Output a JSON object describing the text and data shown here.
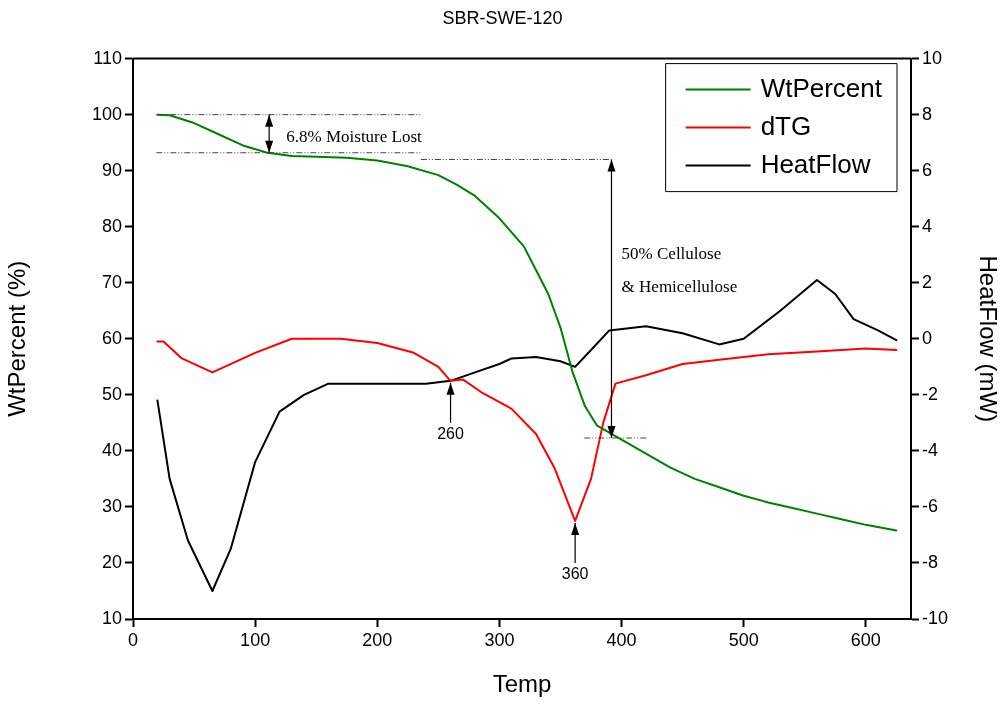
{
  "chart_data": {
    "type": "line",
    "title": "SBR-SWE-120",
    "xlabel": "Temp",
    "ylabel": "WtPercent (%)",
    "y2label": "HeatFlow (mW)",
    "xlim": [
      0,
      637
    ],
    "xticks": [
      0,
      100,
      200,
      300,
      400,
      500,
      600
    ],
    "ylim": [
      10,
      110
    ],
    "yticks": [
      10,
      20,
      30,
      40,
      50,
      60,
      70,
      80,
      90,
      100,
      110
    ],
    "y2lim": [
      -10,
      10
    ],
    "y2ticks": [
      -10,
      -8,
      -6,
      -4,
      -2,
      0,
      2,
      4,
      6,
      8,
      10
    ],
    "grid": false,
    "legend": "top right",
    "marker": "none",
    "line_style": "solid",
    "series": [
      {
        "name": "WtPercent",
        "color": "#008000",
        "x": [
          20,
          30,
          50,
          70,
          90,
          110,
          130,
          150,
          175,
          200,
          225,
          250,
          265,
          280,
          300,
          320,
          340,
          350,
          360,
          370,
          380,
          400,
          420,
          440,
          460,
          480,
          500,
          520,
          540,
          560,
          580,
          600,
          625
        ],
        "values": [
          100,
          99.9,
          98.5,
          96.5,
          94.5,
          93.2,
          92.6,
          92.5,
          92.3,
          91.8,
          90.8,
          89.2,
          87.5,
          85.5,
          81.5,
          76.5,
          68,
          62,
          54,
          48,
          44.5,
          42,
          39.5,
          37,
          35,
          33.5,
          32,
          30.8,
          29.8,
          28.8,
          27.8,
          26.8,
          25.8
        ]
      },
      {
        "name": "dTG",
        "color": "#ff0000",
        "axis": "y2",
        "x": [
          20,
          25,
          40,
          65,
          100,
          130,
          170,
          200,
          230,
          250,
          260,
          270,
          285,
          310,
          330,
          345,
          362,
          375,
          385,
          395,
          420,
          450,
          480,
          520,
          560,
          600,
          625
        ],
        "values": [
          -0.1,
          -0.1,
          -0.7,
          -1.2,
          -0.5,
          0,
          0,
          -0.15,
          -0.5,
          -1.0,
          -1.5,
          -1.45,
          -1.9,
          -2.5,
          -3.4,
          -4.6,
          -6.5,
          -5,
          -3,
          -1.6,
          -1.3,
          -0.9,
          -0.75,
          -0.55,
          -0.45,
          -0.35,
          -0.4
        ]
      },
      {
        "name": "HeatFlow",
        "color": "#000000",
        "axis": "y2",
        "x": [
          20,
          30,
          45,
          65,
          80,
          100,
          120,
          140,
          160,
          200,
          240,
          260,
          280,
          300,
          310,
          330,
          350,
          362,
          375,
          390,
          420,
          450,
          480,
          500,
          530,
          560,
          575,
          590,
          610,
          625
        ],
        "values": [
          -2.2,
          -5.0,
          -7.2,
          -9.0,
          -7.5,
          -4.4,
          -2.6,
          -2.0,
          -1.6,
          -1.6,
          -1.6,
          -1.5,
          -1.2,
          -0.9,
          -0.7,
          -0.65,
          -0.8,
          -1.0,
          -0.4,
          0.3,
          0.45,
          0.2,
          -0.2,
          0,
          1.0,
          2.1,
          1.6,
          0.7,
          0.3,
          -0.05
        ]
      }
    ],
    "ref_lines": [
      {
        "axis": "y",
        "value": 100,
        "line_style": "dashdot"
      },
      {
        "axis": "y",
        "value": 93.2,
        "line_style": "dashdot"
      },
      {
        "axis": "y",
        "value": 92,
        "line_style": "dashdot"
      },
      {
        "axis": "y",
        "value": 42.3,
        "line_style": "dashdot"
      }
    ],
    "annotations": [
      "6.8% Moisture Lost",
      "50% Cellulose & Hemicellulose",
      {
        "text": "260",
        "x": 260,
        "y": 52.5
      },
      {
        "text": "360",
        "x": 362,
        "y": 27.5
      }
    ]
  }
}
